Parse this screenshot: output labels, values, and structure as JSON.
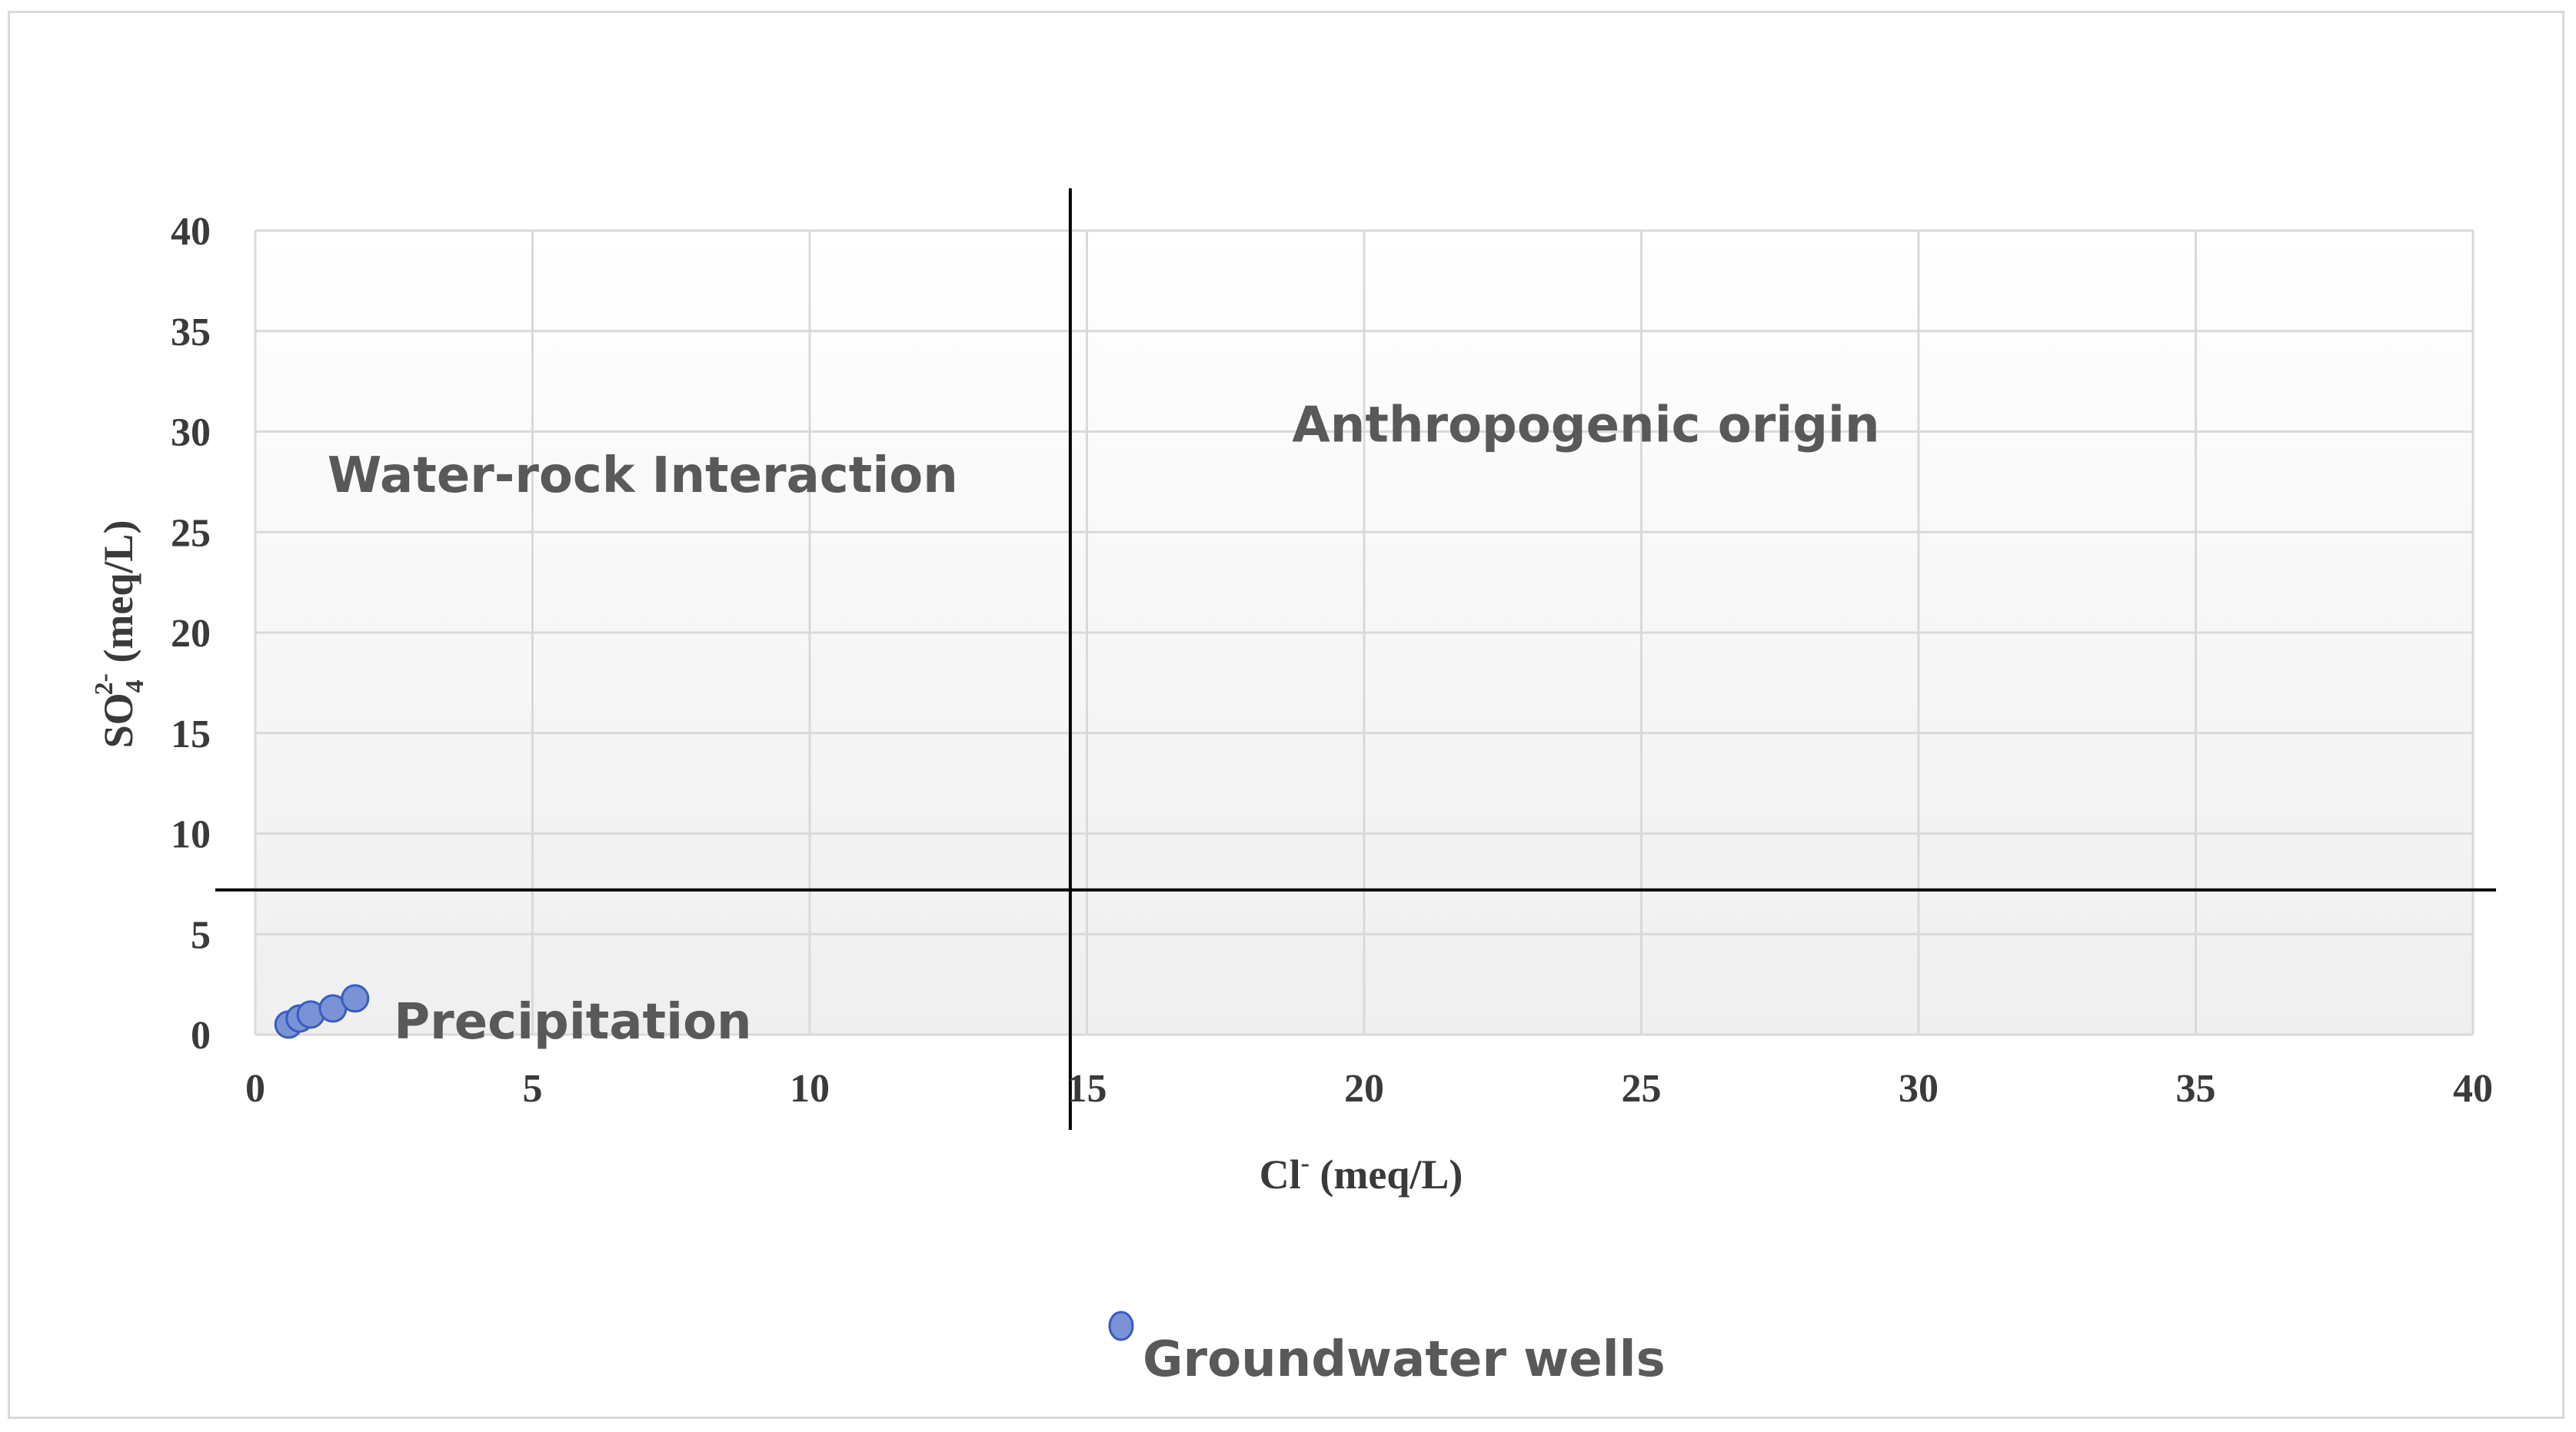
{
  "chart_data": {
    "type": "scatter",
    "xlabel": {
      "main": "Cl",
      "sup": "-",
      "rest": " (meq/L)"
    },
    "ylabel": {
      "main": "SO",
      "sub": "4",
      "sup": "2-",
      "rest": " (meq/L)"
    },
    "xlim": [
      0,
      40
    ],
    "ylim": [
      0,
      40
    ],
    "xticks": [
      "0",
      "5",
      "10",
      "15",
      "20",
      "25",
      "30",
      "35",
      "40"
    ],
    "yticks": [
      "0",
      "5",
      "10",
      "15",
      "20",
      "25",
      "30",
      "35",
      "40"
    ],
    "grid": true,
    "series": [
      {
        "name": "Groundwater wells",
        "color": "#7a93d6",
        "edge_color": "#3a5bbf",
        "points": [
          {
            "x": 0.6,
            "y": 0.5
          },
          {
            "x": 0.8,
            "y": 0.8
          },
          {
            "x": 1.0,
            "y": 1.0
          },
          {
            "x": 1.4,
            "y": 1.3
          },
          {
            "x": 1.8,
            "y": 1.8
          }
        ]
      }
    ],
    "divider_lines": {
      "x": 14.7,
      "y": 7.2
    },
    "annotations": [
      {
        "text": "Water-rock Interaction",
        "x": 1.3,
        "y": 27
      },
      {
        "text": "Anthropogenic origin",
        "x": 18.7,
        "y": 29.5
      },
      {
        "text": "Precipitation",
        "x": 2.5,
        "y": -0.2
      }
    ],
    "legend_position": "bottom-center"
  }
}
